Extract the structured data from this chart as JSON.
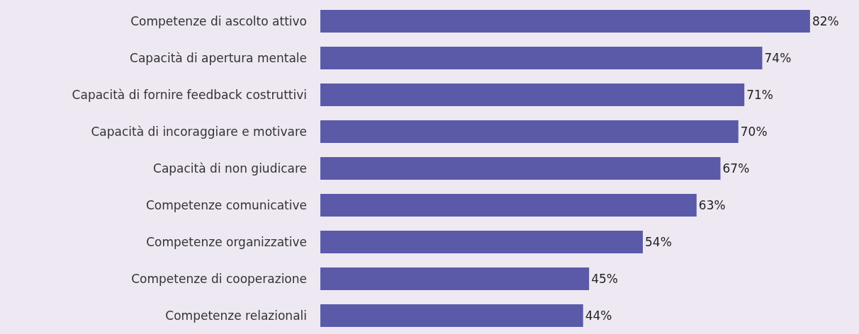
{
  "chart_data": {
    "type": "bar",
    "orientation": "horizontal",
    "categories": [
      "Competenze di ascolto attivo",
      "Capacità di apertura mentale",
      "Capacità di fornire feedback costruttivi",
      "Capacità di incoraggiare e motivare",
      "Capacità di non giudicare",
      "Competenze comunicative",
      "Competenze organizzative",
      "Competenze di cooperazione",
      "Competenze relazionali"
    ],
    "values": [
      82,
      74,
      71,
      70,
      67,
      63,
      54,
      45,
      44
    ],
    "value_labels": [
      "82%",
      "74%",
      "71%",
      "70%",
      "67%",
      "63%",
      "54%",
      "45%",
      "44%"
    ],
    "color": "#5a5aa8",
    "grid": false
  }
}
